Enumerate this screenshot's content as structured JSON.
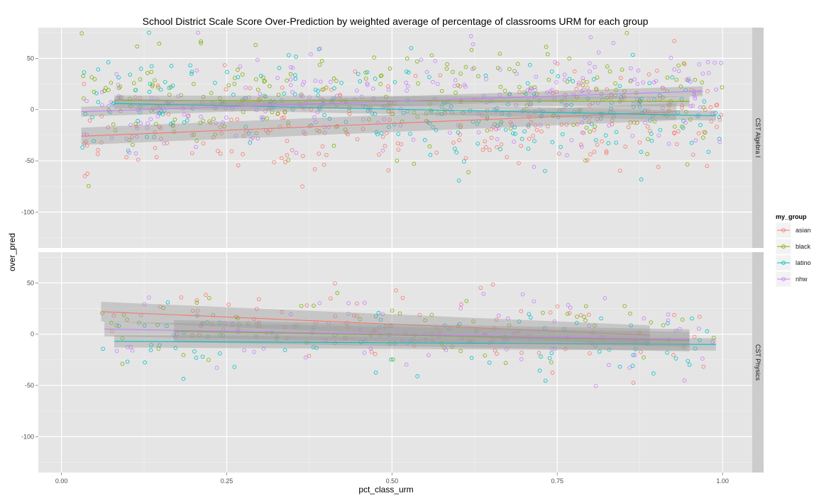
{
  "chart_data": {
    "type": "scatter",
    "title": "School District Scale Score Over-Prediction by weighted average of percentage of classrooms URM for each group",
    "xlabel": "pct_class_urm",
    "ylabel": "over_pred",
    "xlim": [
      -0.035,
      1.045
    ],
    "ylim": [
      -135,
      80
    ],
    "x_ticks": [
      0,
      0.25,
      0.5,
      0.75,
      1
    ],
    "x_tick_labels": [
      "0.00",
      "0.25",
      "0.50",
      "0.75",
      "1.00"
    ],
    "y_ticks": [
      -100,
      -50,
      0,
      50
    ],
    "y_tick_labels": [
      "-100",
      "-50",
      "0",
      "50"
    ],
    "grid": true,
    "legend": {
      "title": "my_group",
      "position": "right",
      "entries": [
        "asian",
        "black",
        "latino",
        "nhw"
      ]
    },
    "colors": {
      "asian": "#F8766D",
      "black": "#7CAE00",
      "latino": "#00BFC4",
      "nhw": "#C77CFF",
      "panel_bg": "#E5E5E5",
      "strip_bg": "#CCCCCC",
      "ribbon": "#999999"
    },
    "facets": [
      {
        "label": "CST Algebra I",
        "x_range": [
          0.03,
          1.0
        ],
        "points_per_group": 230,
        "y_spread": 24,
        "fits": [
          {
            "series": "asian",
            "x": [
              0.03,
              0.93
            ],
            "y": [
              -26,
              -2
            ],
            "band": 7
          },
          {
            "series": "black",
            "x": [
              0.08,
              0.95
            ],
            "y": [
              9,
              8
            ],
            "band": 4
          },
          {
            "series": "latino",
            "x": [
              0.08,
              0.99
            ],
            "y": [
              6,
              -6
            ],
            "band": 4
          },
          {
            "series": "nhw",
            "x": [
              0.03,
              0.97
            ],
            "y": [
              -2,
              18
            ],
            "band": 4
          }
        ]
      },
      {
        "label": "CST Physics",
        "x_range": [
          0.06,
          0.99
        ],
        "points_per_group": 80,
        "y_spread": 18,
        "fits": [
          {
            "series": "asian",
            "x": [
              0.06,
              0.89
            ],
            "y": [
              22,
              -1
            ],
            "band": 8
          },
          {
            "series": "black",
            "x": [
              0.17,
              0.95
            ],
            "y": [
              3,
              -6
            ],
            "band": 9
          },
          {
            "series": "latino",
            "x": [
              0.08,
              0.99
            ],
            "y": [
              -7,
              -10
            ],
            "band": 5
          },
          {
            "series": "nhw",
            "x": [
              0.065,
              0.95
            ],
            "y": [
              5,
              -5
            ],
            "band": 6
          }
        ]
      }
    ]
  }
}
